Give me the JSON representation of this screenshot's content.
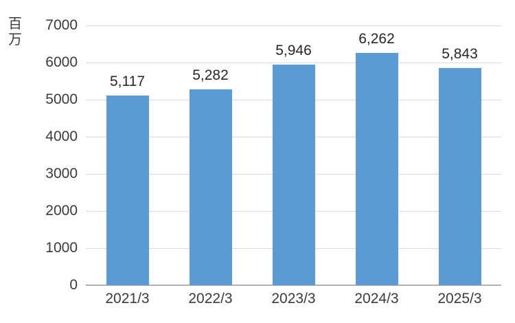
{
  "chart_data": {
    "type": "bar",
    "title": "",
    "xlabel": "",
    "ylabel": "百万",
    "categories": [
      "2021/3",
      "2022/3",
      "2023/3",
      "2024/3",
      "2025/3"
    ],
    "values": [
      5117,
      5282,
      5946,
      6262,
      5843
    ],
    "value_labels": [
      "5,117",
      "5,282",
      "5,946",
      "6,262",
      "5,843"
    ],
    "ylim": [
      0,
      7000
    ],
    "yticks": [
      0,
      1000,
      2000,
      3000,
      4000,
      5000,
      6000,
      7000
    ],
    "ytick_labels": [
      "0",
      "1000",
      "2000",
      "3000",
      "4000",
      "5000",
      "6000",
      "7000"
    ],
    "grid": true,
    "legend_position": "none",
    "colors": {
      "bar": "#5b9bd5",
      "gridline": "#d9d9d9",
      "axis_baseline": "#b0b0b0",
      "tick_text": "#3a3a3a",
      "value_label_text": "#262626",
      "background": "#ffffff"
    }
  }
}
